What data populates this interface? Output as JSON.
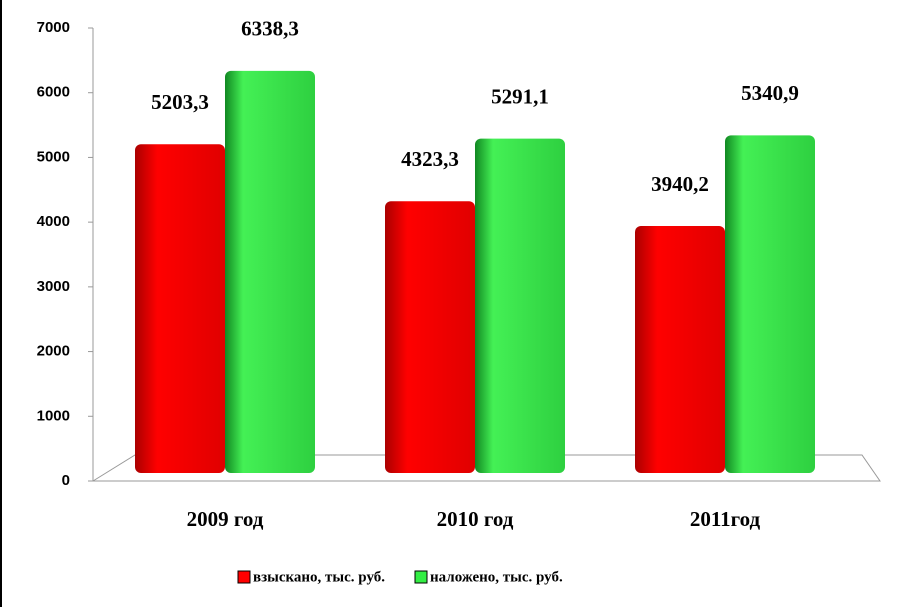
{
  "chart_data": {
    "type": "bar",
    "categories": [
      "2009 год",
      "2010 год",
      "2011год"
    ],
    "series": [
      {
        "name": "взыскано, тыс. руб.",
        "color": "#ff0000",
        "values": [
          5203.3,
          4323.3,
          3940.2
        ],
        "value_labels": [
          "5203,3",
          "4323,3",
          "3940,2"
        ]
      },
      {
        "name": "наложено, тыс. руб.",
        "color": "#33ee44",
        "values": [
          6338.3,
          5291.1,
          5340.9
        ],
        "value_labels": [
          "6338,3",
          "5291,1",
          "5340,9"
        ]
      }
    ],
    "ylim": [
      0,
      7000
    ],
    "yticks": [
      0,
      1000,
      2000,
      3000,
      4000,
      5000,
      6000,
      7000
    ],
    "legend": "bottom"
  }
}
